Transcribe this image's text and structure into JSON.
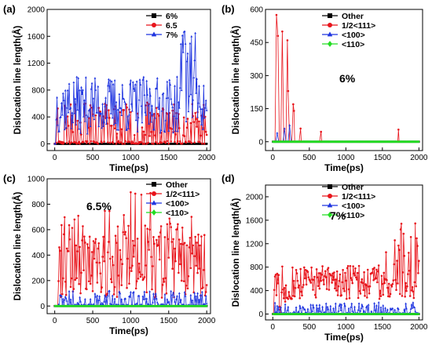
{
  "chart_data": [
    {
      "type": "line",
      "panel_label": "(a)",
      "xlabel": "Time(ps)",
      "ylabel": "Dislocation line length(Å)",
      "xlim": [
        -100,
        2050
      ],
      "ylim": [
        -100,
        2000
      ],
      "xticks": [
        0,
        500,
        1000,
        1500,
        2000
      ],
      "yticks": [
        0,
        400,
        800,
        1200,
        1600,
        2000
      ],
      "annotation": "",
      "legend_position": "top-right",
      "series": [
        {
          "name": "6%",
          "color": "#000000",
          "marker": "square",
          "seed": 11,
          "profile": "zero"
        },
        {
          "name": "6.5",
          "color": "#e8141b",
          "marker": "circle",
          "seed": 23,
          "profile": "a65"
        },
        {
          "name": "7%",
          "color": "#1f35e0",
          "marker": "triangle",
          "seed": 37,
          "profile": "a7"
        }
      ]
    },
    {
      "type": "line",
      "panel_label": "(b)",
      "xlabel": "Time(ps)",
      "ylabel": "Dislocation line length(Å)",
      "xlim": [
        -100,
        2050
      ],
      "ylim": [
        -40,
        600
      ],
      "xticks": [
        0,
        500,
        1000,
        1500,
        2000
      ],
      "yticks": [
        0,
        150,
        300,
        450,
        600
      ],
      "annotation": "6%",
      "legend_position": "top-right",
      "series": [
        {
          "name": "Other",
          "color": "#000000",
          "marker": "square",
          "seed": 41,
          "profile": "zero"
        },
        {
          "name": "1/2<111>",
          "color": "#e8141b",
          "marker": "circle",
          "seed": 43,
          "points": [
            [
              0,
              0
            ],
            [
              30,
              0
            ],
            [
              50,
              575
            ],
            [
              70,
              480
            ],
            [
              90,
              0
            ],
            [
              110,
              0
            ],
            [
              130,
              500
            ],
            [
              150,
              0
            ],
            [
              180,
              0
            ],
            [
              200,
              460
            ],
            [
              210,
              230
            ],
            [
              230,
              0
            ],
            [
              260,
              0
            ],
            [
              280,
              170
            ],
            [
              290,
              140
            ],
            [
              300,
              0
            ],
            [
              360,
              0
            ],
            [
              380,
              60
            ],
            [
              390,
              0
            ],
            [
              640,
              0
            ],
            [
              660,
              45
            ],
            [
              670,
              0
            ],
            [
              1710,
              0
            ],
            [
              1720,
              55
            ],
            [
              1730,
              0
            ],
            [
              2000,
              0
            ]
          ]
        },
        {
          "name": "<100>",
          "color": "#1f35e0",
          "marker": "triangle",
          "seed": 47,
          "points": [
            [
              0,
              0
            ],
            [
              40,
              0
            ],
            [
              60,
              40
            ],
            [
              80,
              0
            ],
            [
              140,
              0
            ],
            [
              160,
              60
            ],
            [
              180,
              0
            ],
            [
              210,
              0
            ],
            [
              230,
              75
            ],
            [
              250,
              0
            ],
            [
              2000,
              0
            ]
          ]
        },
        {
          "name": "<110>",
          "color": "#22dd22",
          "marker": "diamond",
          "seed": 53,
          "profile": "zero"
        }
      ]
    },
    {
      "type": "line",
      "panel_label": "(c)",
      "xlabel": "Time(ps)",
      "ylabel": "Dislocation line length(Å)",
      "xlim": [
        -100,
        2050
      ],
      "ylim": [
        -60,
        1000
      ],
      "xticks": [
        0,
        500,
        1000,
        1500,
        2000
      ],
      "yticks": [
        0,
        200,
        400,
        600,
        800,
        1000
      ],
      "annotation": "6.5%",
      "legend_position": "top-right",
      "series": [
        {
          "name": "Other",
          "color": "#000000",
          "marker": "square",
          "seed": 61,
          "profile": "zero"
        },
        {
          "name": "1/2<111>",
          "color": "#e8141b",
          "marker": "circle",
          "seed": 67,
          "profile": "c111"
        },
        {
          "name": "<100>",
          "color": "#1f35e0",
          "marker": "triangle",
          "seed": 71,
          "profile": "small"
        },
        {
          "name": "<110>",
          "color": "#22dd22",
          "marker": "diamond",
          "seed": 73,
          "profile": "zero"
        }
      ]
    },
    {
      "type": "line",
      "panel_label": "(d)",
      "xlabel": "Time(ps)",
      "ylabel": "Dislocation line length(Å)",
      "xlim": [
        -100,
        2050
      ],
      "ylim": [
        -100,
        2200
      ],
      "xticks": [
        0,
        500,
        1000,
        1500,
        2000
      ],
      "yticks": [
        0,
        400,
        800,
        1200,
        1600,
        2000
      ],
      "annotation": "7%",
      "legend_position": "top-right",
      "series": [
        {
          "name": "Other",
          "color": "#000000",
          "marker": "square",
          "seed": 79,
          "profile": "zero"
        },
        {
          "name": "1/2<111>",
          "color": "#e8141b",
          "marker": "circle",
          "seed": 83,
          "profile": "d111"
        },
        {
          "name": "<100>",
          "color": "#1f35e0",
          "marker": "triangle",
          "seed": 89,
          "profile": "smalld"
        },
        {
          "name": "<110>",
          "color": "#22dd22",
          "marker": "diamond",
          "seed": 97,
          "profile": "zero"
        }
      ]
    }
  ]
}
